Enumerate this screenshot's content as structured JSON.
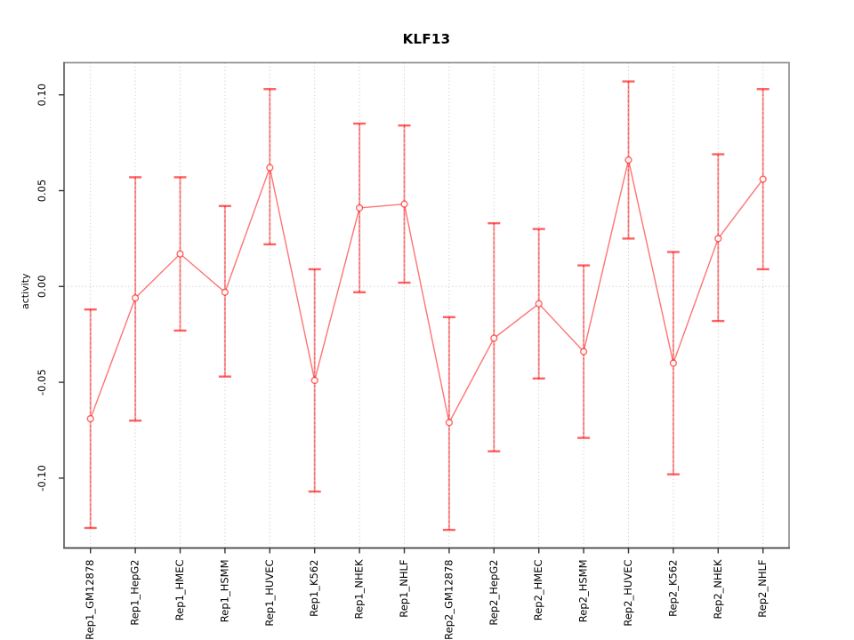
{
  "title": "KLF13",
  "ylabel": "activity",
  "colors": {
    "series_red": "#ff0000",
    "series_line_rendered": "#ff7f7f",
    "error_bar_fill": "#ffaaaa",
    "error_bar_core": "#e04e4e",
    "grid_grey": "#d6d6d6",
    "box_grey": "#8f8f8f",
    "axis_dark": "#3f3f3f",
    "tick_black": "#333333",
    "text_black": "#000000"
  },
  "chart_data": {
    "type": "line",
    "title": "KLF13",
    "xlabel": "",
    "ylabel": "activity",
    "legend_position": "none",
    "grid": "vertical dotted gridline at each category; horizontal dotted line at y=0",
    "marker": "open-circle",
    "error_bars": true,
    "categories": [
      "Rep1_GM12878",
      "Rep1_HepG2",
      "Rep1_HMEC",
      "Rep1_HSMM",
      "Rep1_HUVEC",
      "Rep1_K562",
      "Rep1_NHEK",
      "Rep1_NHLF",
      "Rep2_GM12878",
      "Rep2_HepG2",
      "Rep2_HMEC",
      "Rep2_HSMM",
      "Rep2_HUVEC",
      "Rep2_K562",
      "Rep2_NHEK",
      "Rep2_NHLF"
    ],
    "series": [
      {
        "name": "activity",
        "values": [
          -0.069,
          -0.006,
          0.017,
          -0.003,
          0.062,
          -0.049,
          0.041,
          0.043,
          -0.071,
          -0.027,
          -0.009,
          -0.034,
          0.066,
          -0.04,
          0.025,
          0.056
        ],
        "lower": [
          -0.126,
          -0.07,
          -0.023,
          -0.047,
          0.022,
          -0.107,
          -0.003,
          0.002,
          -0.127,
          -0.086,
          -0.048,
          -0.079,
          0.025,
          -0.098,
          -0.018,
          0.009
        ],
        "upper": [
          -0.012,
          0.057,
          0.057,
          0.042,
          0.103,
          0.009,
          0.085,
          0.084,
          -0.016,
          0.033,
          0.03,
          0.011,
          0.107,
          0.018,
          0.069,
          0.103
        ]
      }
    ],
    "yticks": [
      0.1,
      0.05,
      0.0,
      -0.05,
      -0.1
    ],
    "ytick_labels": [
      "0.10",
      "0.05",
      "0.00",
      "-0.05",
      "-0.10"
    ],
    "ylim": [
      -0.137,
      0.117
    ]
  }
}
